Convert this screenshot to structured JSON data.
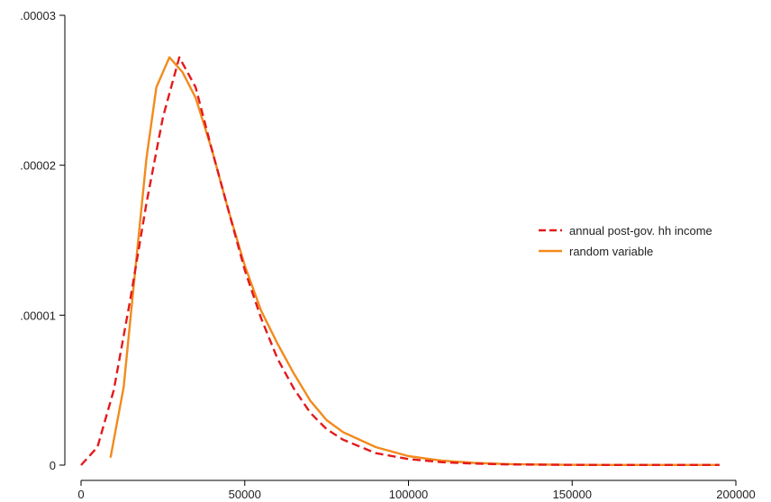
{
  "chart_data": {
    "type": "line",
    "title": "",
    "xlabel": "",
    "ylabel": "",
    "xlim": [
      0,
      200000
    ],
    "ylim": [
      0,
      3e-05
    ],
    "x_ticks": [
      0,
      50000,
      100000,
      150000,
      200000
    ],
    "x_tick_labels": [
      "0",
      "50000",
      "100000",
      "150000",
      "200000"
    ],
    "y_ticks": [
      0,
      1e-05,
      2e-05,
      3e-05
    ],
    "y_tick_labels": [
      "0",
      ".00001",
      ".00002",
      ".00003"
    ],
    "grid": false,
    "legend_position": "right",
    "series": [
      {
        "name": "annual post-gov. hh income",
        "color": "#e41a1c",
        "style": "dashed",
        "x": [
          0,
          5000,
          10000,
          15000,
          20000,
          25000,
          30000,
          35000,
          40000,
          45000,
          50000,
          55000,
          60000,
          65000,
          70000,
          75000,
          80000,
          90000,
          100000,
          110000,
          120000,
          130000,
          140000,
          150000,
          160000,
          170000,
          180000,
          195000
        ],
        "y": [
          0.0,
          1.2e-06,
          5e-06,
          1.1e-05,
          1.75e-05,
          2.32e-05,
          2.72e-05,
          2.52e-05,
          2.1e-05,
          1.7e-05,
          1.3e-05,
          9.8e-06,
          7.1e-06,
          5.1e-06,
          3.5e-06,
          2.4e-06,
          1.7e-06,
          8e-07,
          4e-07,
          2e-07,
          1e-07,
          5e-08,
          3e-08,
          2e-08,
          1e-08,
          1e-08,
          1e-08,
          1e-08
        ]
      },
      {
        "name": "random variable",
        "color": "#f28a1c",
        "style": "solid",
        "x": [
          9000,
          13000,
          17000,
          20000,
          23000,
          27000,
          31000,
          35000,
          40000,
          45000,
          50000,
          55000,
          60000,
          65000,
          70000,
          75000,
          80000,
          90000,
          100000,
          110000,
          120000,
          130000,
          140000,
          150000,
          160000,
          170000,
          180000,
          195000
        ],
        "y": [
          5e-07,
          5.2e-06,
          1.4e-05,
          2.05e-05,
          2.52e-05,
          2.72e-05,
          2.62e-05,
          2.45e-05,
          2.1e-05,
          1.7e-05,
          1.33e-05,
          1.03e-05,
          8.1e-06,
          6.1e-06,
          4.3e-06,
          3e-06,
          2.2e-06,
          1.2e-06,
          6e-07,
          3e-07,
          1.5e-07,
          7e-08,
          4e-08,
          2e-08,
          1e-08,
          1e-08,
          1e-08,
          1e-08
        ]
      }
    ]
  }
}
